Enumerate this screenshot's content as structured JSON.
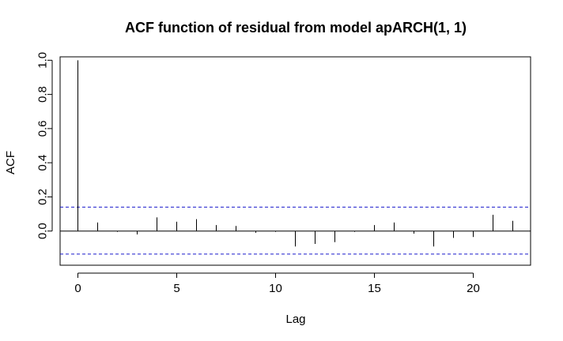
{
  "chart_data": {
    "type": "bar",
    "title": "ACF function of residual from model apARCH(1, 1)",
    "xlabel": "Lag",
    "ylabel": "ACF",
    "xlim": [
      -0.9,
      22.9
    ],
    "ylim": [
      -0.2,
      1.02
    ],
    "x_ticks": [
      0,
      5,
      10,
      15,
      20
    ],
    "x_tick_labels": [
      "0",
      "5",
      "10",
      "15",
      "20"
    ],
    "y_ticks": [
      0.0,
      0.2,
      0.4,
      0.6,
      0.8,
      1.0
    ],
    "y_tick_labels": [
      "0.0",
      "0.2",
      "0.4",
      "0.6",
      "0.8",
      "1.0"
    ],
    "lags": [
      0,
      1,
      2,
      3,
      4,
      5,
      6,
      7,
      8,
      9,
      10,
      11,
      12,
      13,
      14,
      15,
      16,
      17,
      18,
      19,
      20,
      21,
      22
    ],
    "values": [
      1.0,
      0.05,
      -0.005,
      -0.02,
      0.08,
      0.055,
      0.07,
      0.035,
      0.03,
      -0.01,
      -0.005,
      -0.09,
      -0.075,
      -0.065,
      -0.005,
      0.035,
      0.05,
      -0.015,
      -0.09,
      -0.04,
      -0.035,
      0.095,
      0.06
    ],
    "confidence_bounds": [
      0.14,
      -0.135
    ],
    "zero_line": 0,
    "bound_color": "#1a1acc",
    "series_color": "#000000",
    "grid": false
  }
}
